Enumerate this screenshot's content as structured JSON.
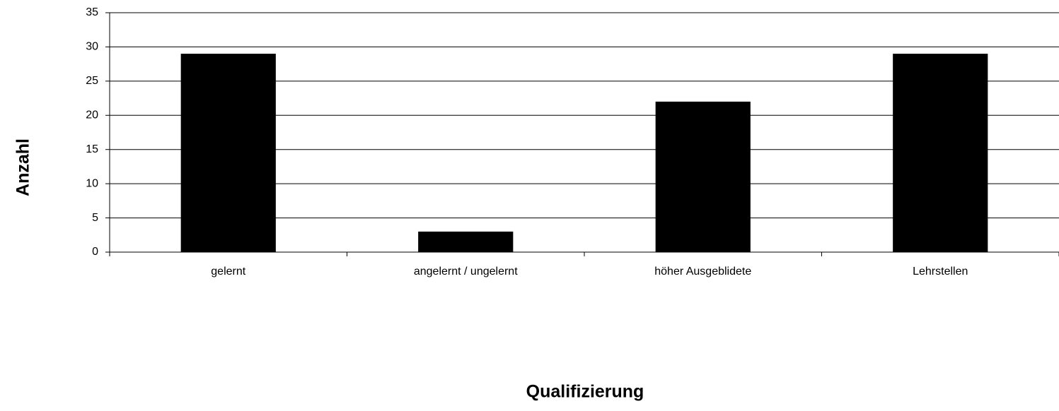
{
  "chart_data": {
    "type": "bar",
    "x_label": "Qualifizierung",
    "y_label": "Anzahl",
    "categories": [
      "gelernt",
      "angelernt / ungelernt",
      "höher Ausgeblidete",
      "Lehrstellen"
    ],
    "values": [
      29,
      3,
      22,
      29
    ],
    "color": "#000000",
    "ylim": [
      0,
      35
    ],
    "yticks": [
      0,
      5,
      10,
      15,
      20,
      25,
      30,
      35
    ],
    "grid": true
  }
}
